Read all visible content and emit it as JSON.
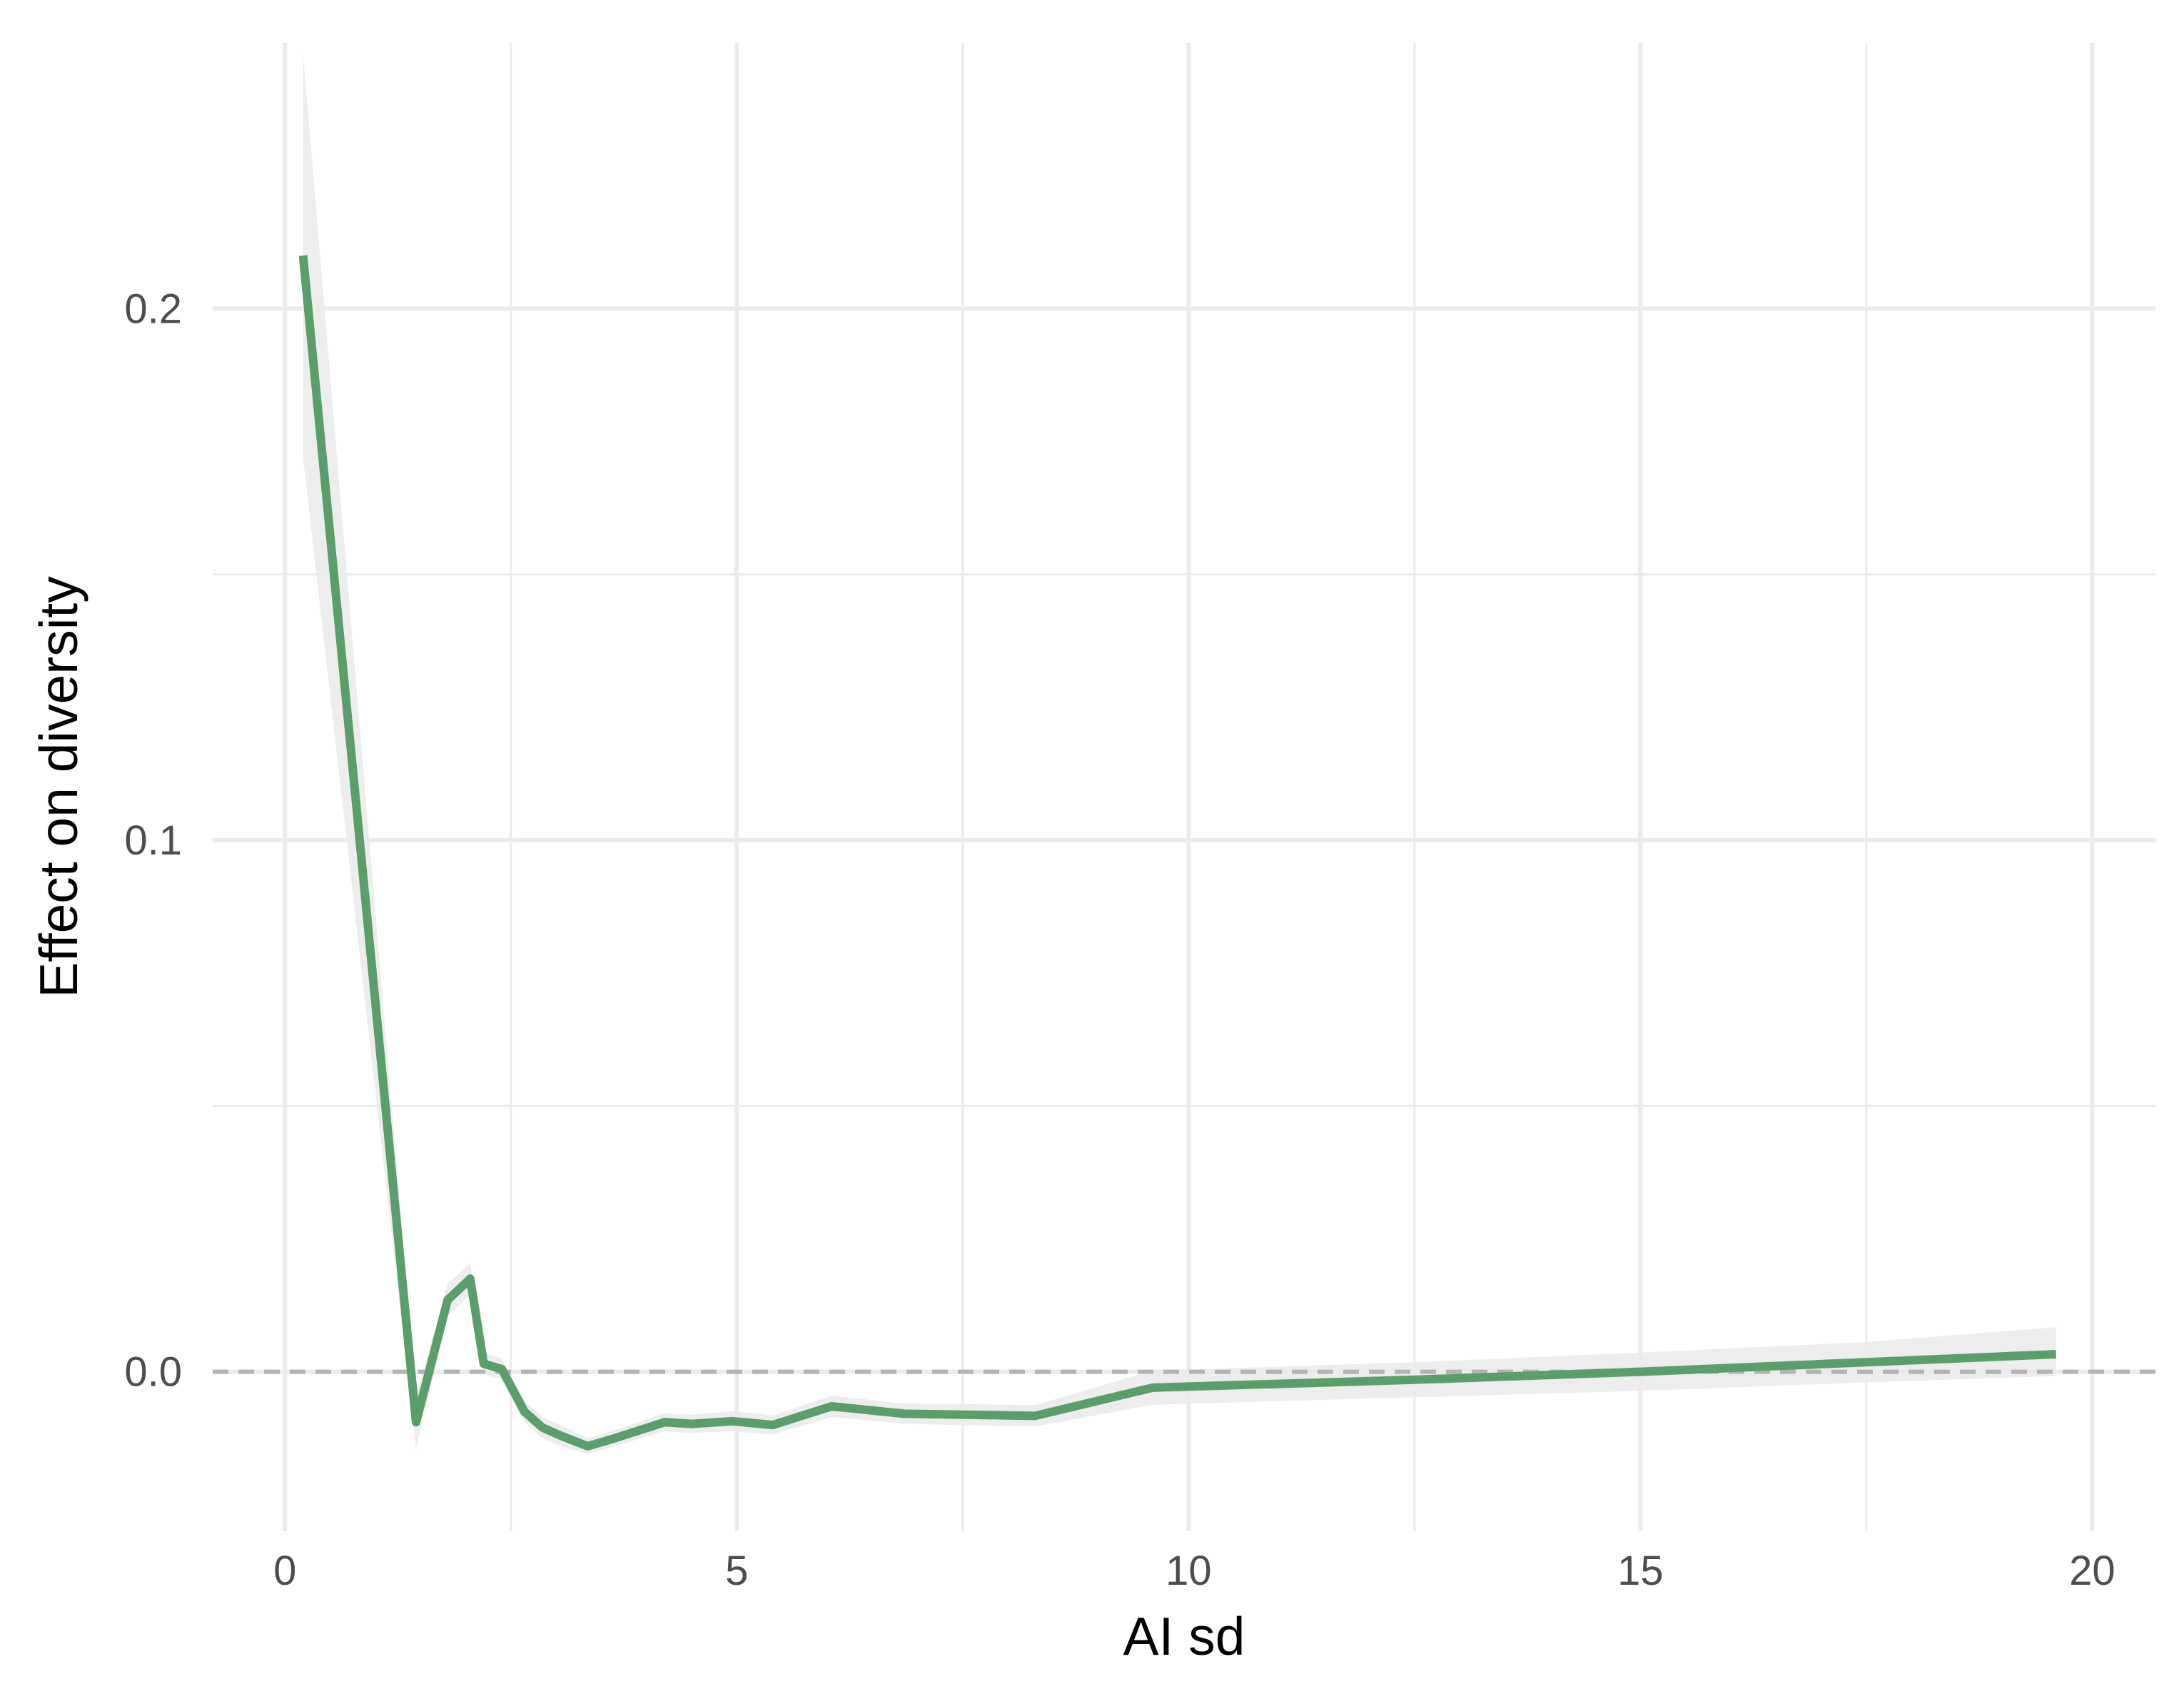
{
  "chart_data": {
    "type": "line",
    "xlabel": "AI sd",
    "ylabel": "Effect on diversity",
    "xlim": [
      -0.8,
      20.7
    ],
    "ylim": [
      -0.03,
      0.25
    ],
    "x_ticks": [
      0,
      5,
      10,
      15,
      20
    ],
    "x_tick_labels": [
      "0",
      "5",
      "10",
      "15",
      "20"
    ],
    "y_ticks": [
      0.0,
      0.1,
      0.2
    ],
    "y_tick_labels": [
      "0.0",
      "0.1",
      "0.2"
    ],
    "grid": true,
    "reference_line": {
      "y": 0,
      "style": "dashed",
      "color": "#b3b3b3"
    },
    "series": [
      {
        "color": "#5a9e6c",
        "ribbon_color": "#ebebeb",
        "x": [
          0.2,
          1.45,
          1.8,
          2.05,
          2.2,
          2.4,
          2.65,
          2.85,
          3.05,
          3.35,
          3.65,
          4.2,
          4.5,
          4.95,
          5.4,
          6.05,
          6.85,
          7.6,
          8.3,
          9.6,
          12.5,
          15.0,
          17.5,
          19.6
        ],
        "values": [
          0.21,
          -0.0095,
          0.0135,
          0.0175,
          0.0015,
          0.0005,
          -0.0075,
          -0.0105,
          -0.012,
          -0.014,
          -0.0125,
          -0.0095,
          -0.0098,
          -0.0093,
          -0.01,
          -0.0065,
          -0.0079,
          -0.0081,
          -0.0083,
          -0.003,
          -0.0015,
          0.0,
          0.0018,
          0.0033
        ],
        "lower": [
          0.172,
          -0.0145,
          0.0105,
          0.0145,
          -0.0005,
          -0.0015,
          -0.0095,
          -0.0125,
          -0.014,
          -0.0155,
          -0.014,
          -0.0112,
          -0.0115,
          -0.0112,
          -0.0118,
          -0.0085,
          -0.0098,
          -0.0101,
          -0.0103,
          -0.0062,
          -0.0048,
          -0.0036,
          -0.002,
          -0.0008
        ],
        "upper": [
          0.248,
          -0.0045,
          0.0165,
          0.0205,
          0.0035,
          0.0025,
          -0.0055,
          -0.0085,
          -0.01,
          -0.0125,
          -0.011,
          -0.0078,
          -0.0081,
          -0.0074,
          -0.0082,
          -0.0045,
          -0.006,
          -0.0061,
          -0.0063,
          0.0002,
          0.0018,
          0.0036,
          0.0056,
          0.0084
        ]
      }
    ]
  }
}
